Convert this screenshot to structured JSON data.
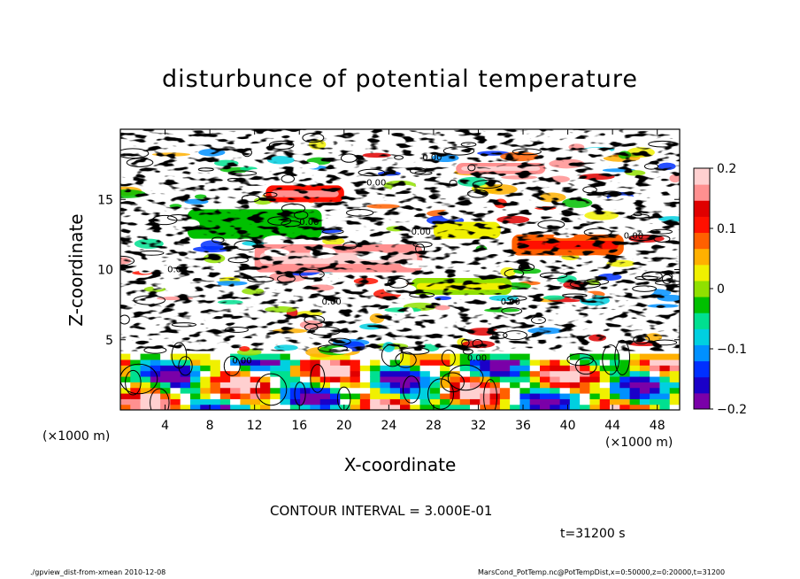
{
  "chart_data": {
    "type": "heatmap",
    "title": "disturbunce of potential temperature",
    "xlabel": "X-coordinate",
    "ylabel": "Z-coordinate",
    "x_unit": "(×1000 m)",
    "y_unit": "(×1000 m)",
    "xlim": [
      0,
      50
    ],
    "ylim": [
      0,
      20
    ],
    "x_ticks": [
      4,
      8,
      12,
      16,
      20,
      24,
      28,
      32,
      36,
      40,
      44,
      48
    ],
    "y_ticks": [
      5,
      10,
      15
    ],
    "colorbar": {
      "range": [
        -0.2,
        0.2
      ],
      "tick_labels": [
        "0.2",
        "0.1",
        "0",
        "−0.1",
        "−0.2"
      ],
      "tick_values": [
        0.2,
        0.1,
        0,
        -0.1,
        -0.2
      ],
      "colors": [
        "#7a00a8",
        "#1a00c8",
        "#0030ff",
        "#0090ff",
        "#00d0e0",
        "#00e090",
        "#00c000",
        "#90e000",
        "#f0f000",
        "#ffb000",
        "#ff6000",
        "#ff1000",
        "#e00000",
        "#ff9090",
        "#ffd0d0"
      ]
    },
    "contour_labels": [
      "0.00"
    ],
    "bands": [
      {
        "x": [
          6,
          18
        ],
        "z": [
          12.2,
          14.3
        ],
        "value": -0.02
      },
      {
        "x": [
          13,
          20
        ],
        "z": [
          14.8,
          16.0
        ],
        "value": 0.12
      },
      {
        "x": [
          12,
          27
        ],
        "z": [
          9.8,
          11.8
        ],
        "value": 0.15
      },
      {
        "x": [
          26,
          35
        ],
        "z": [
          8.2,
          9.4
        ],
        "value": 0.01
      },
      {
        "x": [
          28,
          34
        ],
        "z": [
          12.2,
          13.4
        ],
        "value": 0.02
      },
      {
        "x": [
          35,
          45
        ],
        "z": [
          11.0,
          12.5
        ],
        "value": 0.08
      },
      {
        "x": [
          30,
          38
        ],
        "z": [
          16.8,
          17.6
        ],
        "value": 0.16
      }
    ],
    "bottom_layer": {
      "z": [
        0,
        4
      ],
      "value_range": [
        -0.2,
        0.2
      ]
    }
  },
  "contour_interval": "CONTOUR INTERVAL = 3.000E-01",
  "time_label": "t=31200 s",
  "footer_left": "./gpview_dist-from-xmean  2010-12-08",
  "footer_right": "MarsCond_PotTemp.nc@PotTempDist,x=0:50000,z=0:20000,t=31200"
}
